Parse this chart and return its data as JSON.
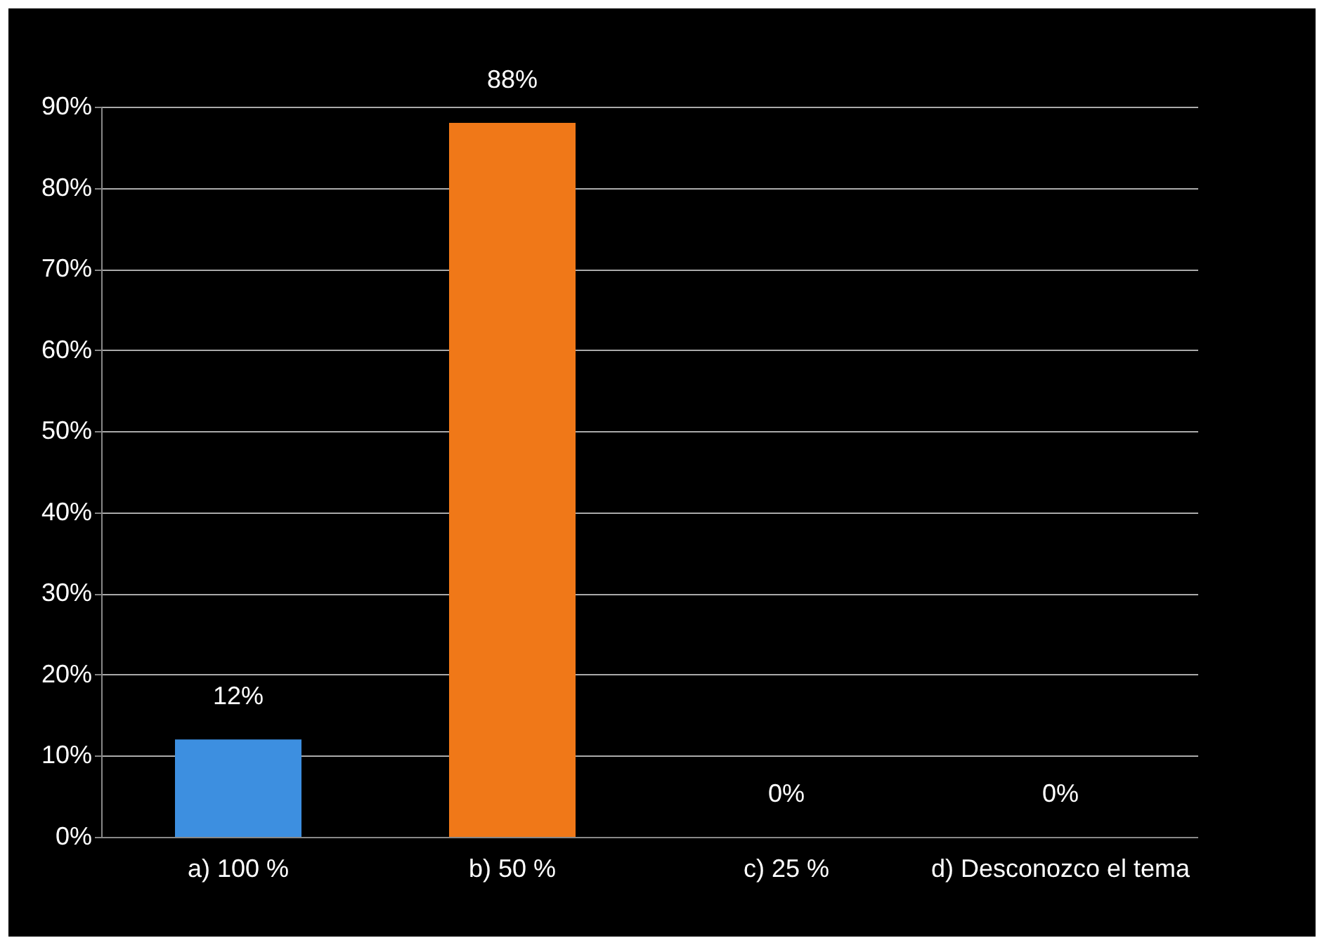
{
  "chart_data": {
    "type": "bar",
    "categories": [
      "a) 100 %",
      "b) 50 %",
      "c) 25 %",
      "d) Desconozco el tema"
    ],
    "values": [
      12,
      88,
      0,
      0
    ],
    "colors": [
      "#3d8fe0",
      "#f07818",
      "#5a5a5a",
      "#a08a00"
    ],
    "value_labels": [
      "12%",
      "88%",
      "0%",
      "0%"
    ],
    "ylim": [
      0,
      90
    ],
    "yticks": [
      {
        "value": 0,
        "label": "0%"
      },
      {
        "value": 10,
        "label": "10%"
      },
      {
        "value": 20,
        "label": "20%"
      },
      {
        "value": 30,
        "label": "30%"
      },
      {
        "value": 40,
        "label": "40%"
      },
      {
        "value": 50,
        "label": "50%"
      },
      {
        "value": 60,
        "label": "60%"
      },
      {
        "value": 70,
        "label": "70%"
      },
      {
        "value": 80,
        "label": "80%"
      },
      {
        "value": 90,
        "label": "90%"
      }
    ],
    "grid": "y"
  }
}
